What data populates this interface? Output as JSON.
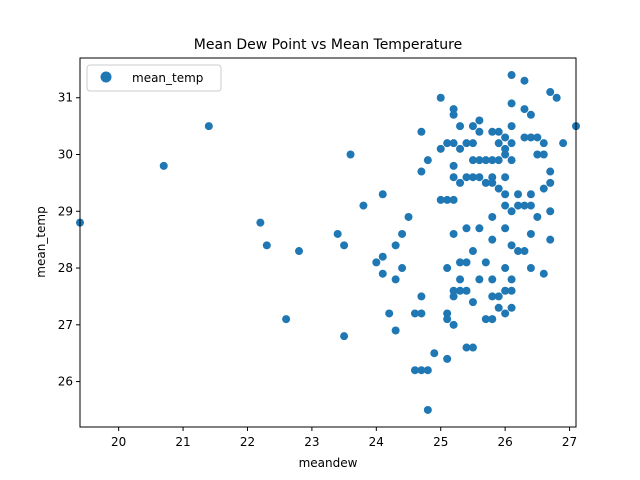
{
  "chart_data": {
    "type": "scatter",
    "title": "Mean Dew Point vs Mean Temperature",
    "xlabel": "meandew",
    "ylabel": "mean_temp",
    "xlim": [
      19.4,
      27.1
    ],
    "ylim": [
      25.2,
      31.7
    ],
    "x_ticks": [
      20,
      21,
      22,
      23,
      24,
      25,
      26,
      27
    ],
    "y_ticks": [
      26,
      27,
      28,
      29,
      30,
      31
    ],
    "grid": false,
    "legend": {
      "placement": "top-left",
      "entries": [
        "mean_temp"
      ]
    },
    "series": [
      {
        "name": "mean_temp",
        "color": "#1f77b4",
        "points": [
          [
            19.4,
            28.8
          ],
          [
            20.7,
            29.8
          ],
          [
            21.4,
            30.5
          ],
          [
            22.2,
            28.8
          ],
          [
            22.3,
            28.4
          ],
          [
            22.6,
            27.1
          ],
          [
            22.8,
            28.3
          ],
          [
            23.4,
            28.6
          ],
          [
            23.5,
            28.4
          ],
          [
            23.5,
            26.8
          ],
          [
            23.6,
            30.0
          ],
          [
            23.8,
            29.1
          ],
          [
            24.0,
            28.1
          ],
          [
            24.1,
            29.3
          ],
          [
            24.1,
            28.2
          ],
          [
            24.1,
            27.9
          ],
          [
            24.2,
            27.2
          ],
          [
            24.3,
            28.4
          ],
          [
            24.3,
            27.8
          ],
          [
            24.3,
            26.9
          ],
          [
            24.4,
            28.6
          ],
          [
            24.4,
            28.0
          ],
          [
            24.5,
            28.9
          ],
          [
            24.6,
            27.2
          ],
          [
            24.6,
            26.2
          ],
          [
            24.7,
            30.4
          ],
          [
            24.7,
            29.7
          ],
          [
            24.7,
            27.5
          ],
          [
            24.7,
            27.2
          ],
          [
            24.7,
            26.2
          ],
          [
            24.8,
            29.9
          ],
          [
            24.8,
            26.2
          ],
          [
            24.8,
            25.5
          ],
          [
            24.9,
            26.5
          ],
          [
            25.0,
            31.0
          ],
          [
            25.0,
            30.1
          ],
          [
            25.0,
            29.2
          ],
          [
            25.1,
            30.2
          ],
          [
            25.1,
            29.2
          ],
          [
            25.1,
            28.0
          ],
          [
            25.1,
            27.2
          ],
          [
            25.1,
            27.1
          ],
          [
            25.1,
            26.4
          ],
          [
            25.2,
            30.8
          ],
          [
            25.2,
            30.7
          ],
          [
            25.2,
            30.2
          ],
          [
            25.2,
            29.8
          ],
          [
            25.2,
            29.6
          ],
          [
            25.2,
            29.2
          ],
          [
            25.2,
            28.6
          ],
          [
            25.2,
            27.6
          ],
          [
            25.2,
            27.5
          ],
          [
            25.2,
            27.0
          ],
          [
            25.3,
            30.5
          ],
          [
            25.3,
            30.1
          ],
          [
            25.3,
            29.5
          ],
          [
            25.3,
            28.1
          ],
          [
            25.3,
            27.8
          ],
          [
            25.3,
            27.6
          ],
          [
            25.4,
            30.2
          ],
          [
            25.4,
            29.6
          ],
          [
            25.4,
            28.7
          ],
          [
            25.4,
            28.1
          ],
          [
            25.4,
            27.6
          ],
          [
            25.4,
            26.6
          ],
          [
            25.5,
            30.5
          ],
          [
            25.5,
            30.2
          ],
          [
            25.5,
            29.9
          ],
          [
            25.5,
            29.6
          ],
          [
            25.5,
            28.3
          ],
          [
            25.5,
            27.4
          ],
          [
            25.5,
            26.6
          ],
          [
            25.6,
            30.6
          ],
          [
            25.6,
            30.4
          ],
          [
            25.6,
            29.9
          ],
          [
            25.6,
            29.6
          ],
          [
            25.6,
            28.7
          ],
          [
            25.6,
            27.8
          ],
          [
            25.7,
            29.9
          ],
          [
            25.7,
            29.5
          ],
          [
            25.7,
            28.1
          ],
          [
            25.7,
            27.1
          ],
          [
            25.8,
            30.4
          ],
          [
            25.8,
            29.9
          ],
          [
            25.8,
            29.6
          ],
          [
            25.8,
            29.5
          ],
          [
            25.8,
            28.9
          ],
          [
            25.8,
            28.5
          ],
          [
            25.8,
            27.8
          ],
          [
            25.8,
            27.5
          ],
          [
            25.8,
            27.1
          ],
          [
            25.9,
            30.4
          ],
          [
            25.9,
            30.2
          ],
          [
            25.9,
            29.9
          ],
          [
            25.9,
            29.4
          ],
          [
            25.9,
            27.5
          ],
          [
            25.9,
            27.3
          ],
          [
            26.0,
            30.3
          ],
          [
            26.0,
            30.1
          ],
          [
            26.0,
            30.0
          ],
          [
            26.0,
            29.6
          ],
          [
            26.0,
            29.3
          ],
          [
            26.0,
            29.1
          ],
          [
            26.0,
            28.7
          ],
          [
            26.0,
            28.0
          ],
          [
            26.0,
            27.6
          ],
          [
            26.0,
            27.2
          ],
          [
            26.1,
            31.4
          ],
          [
            26.1,
            30.9
          ],
          [
            26.1,
            30.5
          ],
          [
            26.1,
            30.2
          ],
          [
            26.1,
            29.9
          ],
          [
            26.1,
            29.0
          ],
          [
            26.1,
            28.4
          ],
          [
            26.1,
            27.8
          ],
          [
            26.1,
            27.6
          ],
          [
            26.1,
            27.3
          ],
          [
            26.2,
            29.3
          ],
          [
            26.2,
            29.1
          ],
          [
            26.2,
            28.3
          ],
          [
            26.3,
            31.3
          ],
          [
            26.3,
            30.8
          ],
          [
            26.3,
            30.3
          ],
          [
            26.3,
            29.1
          ],
          [
            26.3,
            28.3
          ],
          [
            26.4,
            30.7
          ],
          [
            26.4,
            30.3
          ],
          [
            26.4,
            29.3
          ],
          [
            26.4,
            29.1
          ],
          [
            26.4,
            28.6
          ],
          [
            26.4,
            28.0
          ],
          [
            26.5,
            30.3
          ],
          [
            26.5,
            30.0
          ],
          [
            26.5,
            28.9
          ],
          [
            26.6,
            30.2
          ],
          [
            26.6,
            30.0
          ],
          [
            26.6,
            29.4
          ],
          [
            26.6,
            27.9
          ],
          [
            26.7,
            31.1
          ],
          [
            26.7,
            29.7
          ],
          [
            26.7,
            29.5
          ],
          [
            26.7,
            29.0
          ],
          [
            26.7,
            28.5
          ],
          [
            26.8,
            31.0
          ],
          [
            26.9,
            30.2
          ],
          [
            27.1,
            30.5
          ]
        ]
      }
    ]
  }
}
